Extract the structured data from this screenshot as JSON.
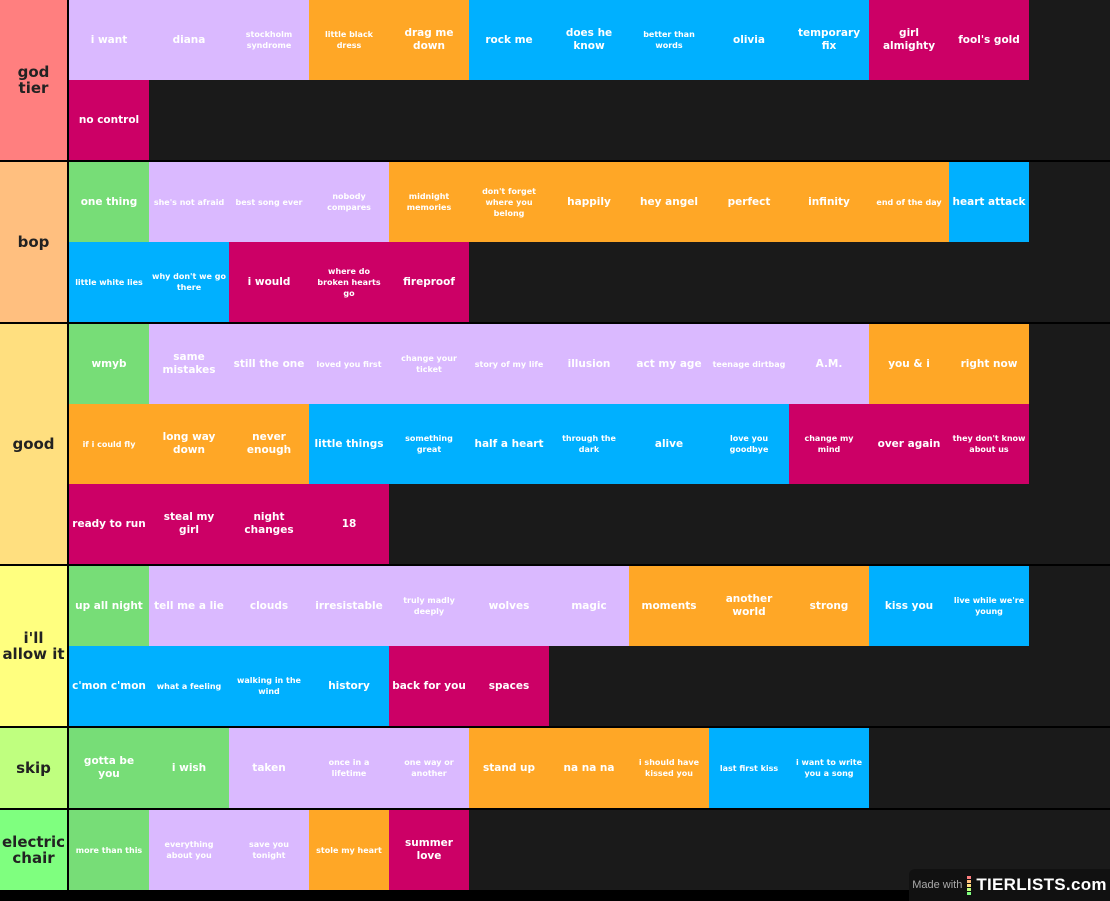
{
  "colors": {
    "g": "#77dd77",
    "l": "#dab9ff",
    "o": "#ffa726",
    "b": "#00b0ff",
    "m": "#cc0066"
  },
  "tiers": [
    {
      "label": "god\ntier",
      "color": "#ff7f7f",
      "items": [
        {
          "text": "i want",
          "c": "l"
        },
        {
          "text": "diana",
          "c": "l"
        },
        {
          "text": "stockholm syndrome",
          "c": "l"
        },
        {
          "text": "little black dress",
          "c": "o"
        },
        {
          "text": "drag me down",
          "c": "o"
        },
        {
          "text": "rock me",
          "c": "b"
        },
        {
          "text": "does he know",
          "c": "b"
        },
        {
          "text": "better than words",
          "c": "b"
        },
        {
          "text": "olivia",
          "c": "b"
        },
        {
          "text": "temporary fix",
          "c": "b"
        },
        {
          "text": "girl almighty",
          "c": "m"
        },
        {
          "text": "fool's gold",
          "c": "m"
        },
        {
          "text": "no control",
          "c": "m"
        }
      ]
    },
    {
      "label": "bop",
      "color": "#ffbf7f",
      "items": [
        {
          "text": "one thing",
          "c": "g"
        },
        {
          "text": "she's not afraid",
          "c": "l"
        },
        {
          "text": "best song ever",
          "c": "l"
        },
        {
          "text": "nobody compares",
          "c": "l"
        },
        {
          "text": "midnight memories",
          "c": "o"
        },
        {
          "text": "don't forget where you belong",
          "c": "o"
        },
        {
          "text": "happily",
          "c": "o"
        },
        {
          "text": "hey angel",
          "c": "o"
        },
        {
          "text": "perfect",
          "c": "o"
        },
        {
          "text": "infinity",
          "c": "o"
        },
        {
          "text": "end of the day",
          "c": "o"
        },
        {
          "text": "heart attack",
          "c": "b"
        },
        {
          "text": "little white lies",
          "c": "b"
        },
        {
          "text": "why don't we go there",
          "c": "b"
        },
        {
          "text": "i would",
          "c": "m"
        },
        {
          "text": "where do broken hearts go",
          "c": "m"
        },
        {
          "text": "fireproof",
          "c": "m"
        }
      ]
    },
    {
      "label": "good",
      "color": "#ffdf7f",
      "items": [
        {
          "text": "wmyb",
          "c": "g"
        },
        {
          "text": "same mistakes",
          "c": "l"
        },
        {
          "text": "still the one",
          "c": "l"
        },
        {
          "text": "loved you first",
          "c": "l"
        },
        {
          "text": "change your ticket",
          "c": "l"
        },
        {
          "text": "story of my life",
          "c": "l"
        },
        {
          "text": "illusion",
          "c": "l"
        },
        {
          "text": "act my age",
          "c": "l"
        },
        {
          "text": "teenage dirtbag",
          "c": "l"
        },
        {
          "text": "A.M.",
          "c": "l"
        },
        {
          "text": "you & i",
          "c": "o"
        },
        {
          "text": "right now",
          "c": "o"
        },
        {
          "text": "if i could fly",
          "c": "o"
        },
        {
          "text": "long way down",
          "c": "o"
        },
        {
          "text": "never enough",
          "c": "o"
        },
        {
          "text": "little things",
          "c": "b"
        },
        {
          "text": "something great",
          "c": "b"
        },
        {
          "text": "half a heart",
          "c": "b"
        },
        {
          "text": "through the dark",
          "c": "b"
        },
        {
          "text": "alive",
          "c": "b"
        },
        {
          "text": "love you goodbye",
          "c": "b"
        },
        {
          "text": "change my mind",
          "c": "m"
        },
        {
          "text": "over again",
          "c": "m"
        },
        {
          "text": "they don't know about us",
          "c": "m"
        },
        {
          "text": "ready to run",
          "c": "m"
        },
        {
          "text": "steal my girl",
          "c": "m"
        },
        {
          "text": "night changes",
          "c": "m"
        },
        {
          "text": "18",
          "c": "m"
        }
      ]
    },
    {
      "label": "i'll\nallow it",
      "color": "#ffff7f",
      "items": [
        {
          "text": "up all night",
          "c": "g"
        },
        {
          "text": "tell me a lie",
          "c": "l"
        },
        {
          "text": "clouds",
          "c": "l"
        },
        {
          "text": "irresistable",
          "c": "l"
        },
        {
          "text": "truly madly deeply",
          "c": "l"
        },
        {
          "text": "wolves",
          "c": "l"
        },
        {
          "text": "magic",
          "c": "l"
        },
        {
          "text": "moments",
          "c": "o"
        },
        {
          "text": "another world",
          "c": "o"
        },
        {
          "text": "strong",
          "c": "o"
        },
        {
          "text": "kiss you",
          "c": "b"
        },
        {
          "text": "live while we're young",
          "c": "b"
        },
        {
          "text": "c'mon c'mon",
          "c": "b"
        },
        {
          "text": "what a feeling",
          "c": "b"
        },
        {
          "text": "walking in the wind",
          "c": "b"
        },
        {
          "text": "history",
          "c": "b"
        },
        {
          "text": "back for you",
          "c": "m"
        },
        {
          "text": "spaces",
          "c": "m"
        }
      ]
    },
    {
      "label": "skip",
      "color": "#bfff7f",
      "items": [
        {
          "text": "gotta be you",
          "c": "g"
        },
        {
          "text": "i wish",
          "c": "g"
        },
        {
          "text": "taken",
          "c": "l"
        },
        {
          "text": "once in a lifetime",
          "c": "l"
        },
        {
          "text": "one way or another",
          "c": "l"
        },
        {
          "text": "stand up",
          "c": "o"
        },
        {
          "text": "na na na",
          "c": "o"
        },
        {
          "text": "i should have kissed you",
          "c": "o"
        },
        {
          "text": "last first kiss",
          "c": "b"
        },
        {
          "text": "i want to write you a song",
          "c": "b"
        }
      ]
    },
    {
      "label": "electric\nchair",
      "color": "#7fff7f",
      "items": [
        {
          "text": "more than this",
          "c": "g"
        },
        {
          "text": "everything about you",
          "c": "l"
        },
        {
          "text": "save you tonight",
          "c": "l"
        },
        {
          "text": "stole my heart",
          "c": "o"
        },
        {
          "text": "summer love",
          "c": "m"
        }
      ]
    }
  ],
  "watermark": {
    "prefix": "Made with",
    "brand": "TIERLISTS.com"
  }
}
